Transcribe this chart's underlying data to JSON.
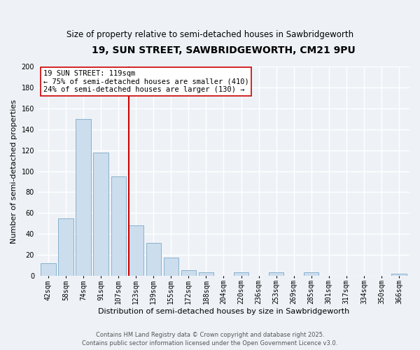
{
  "title": "19, SUN STREET, SAWBRIDGEWORTH, CM21 9PU",
  "subtitle": "Size of property relative to semi-detached houses in Sawbridgeworth",
  "xlabel": "Distribution of semi-detached houses by size in Sawbridgeworth",
  "ylabel": "Number of semi-detached properties",
  "bar_color": "#ccdded",
  "bar_edge_color": "#7aaac8",
  "categories": [
    "42sqm",
    "58sqm",
    "74sqm",
    "91sqm",
    "107sqm",
    "123sqm",
    "139sqm",
    "155sqm",
    "172sqm",
    "188sqm",
    "204sqm",
    "220sqm",
    "236sqm",
    "253sqm",
    "269sqm",
    "285sqm",
    "301sqm",
    "317sqm",
    "334sqm",
    "350sqm",
    "366sqm"
  ],
  "values": [
    12,
    55,
    150,
    118,
    95,
    48,
    31,
    17,
    5,
    3,
    0,
    3,
    0,
    3,
    0,
    3,
    0,
    0,
    0,
    0,
    2
  ],
  "vline_color": "#cc0000",
  "annotation_title": "19 SUN STREET: 119sqm",
  "annotation_line1": "← 75% of semi-detached houses are smaller (410)",
  "annotation_line2": "24% of semi-detached houses are larger (130) →",
  "annotation_box_color": "#ffffff",
  "annotation_box_edge": "#cc0000",
  "ylim": [
    0,
    200
  ],
  "yticks": [
    0,
    20,
    40,
    60,
    80,
    100,
    120,
    140,
    160,
    180,
    200
  ],
  "footer_line1": "Contains HM Land Registry data © Crown copyright and database right 2025.",
  "footer_line2": "Contains public sector information licensed under the Open Government Licence v3.0.",
  "bg_color": "#eef2f7",
  "grid_color": "#ffffff",
  "title_fontsize": 10,
  "subtitle_fontsize": 8.5,
  "axis_label_fontsize": 8,
  "tick_fontsize": 7,
  "annotation_fontsize": 7.5,
  "footer_fontsize": 6
}
